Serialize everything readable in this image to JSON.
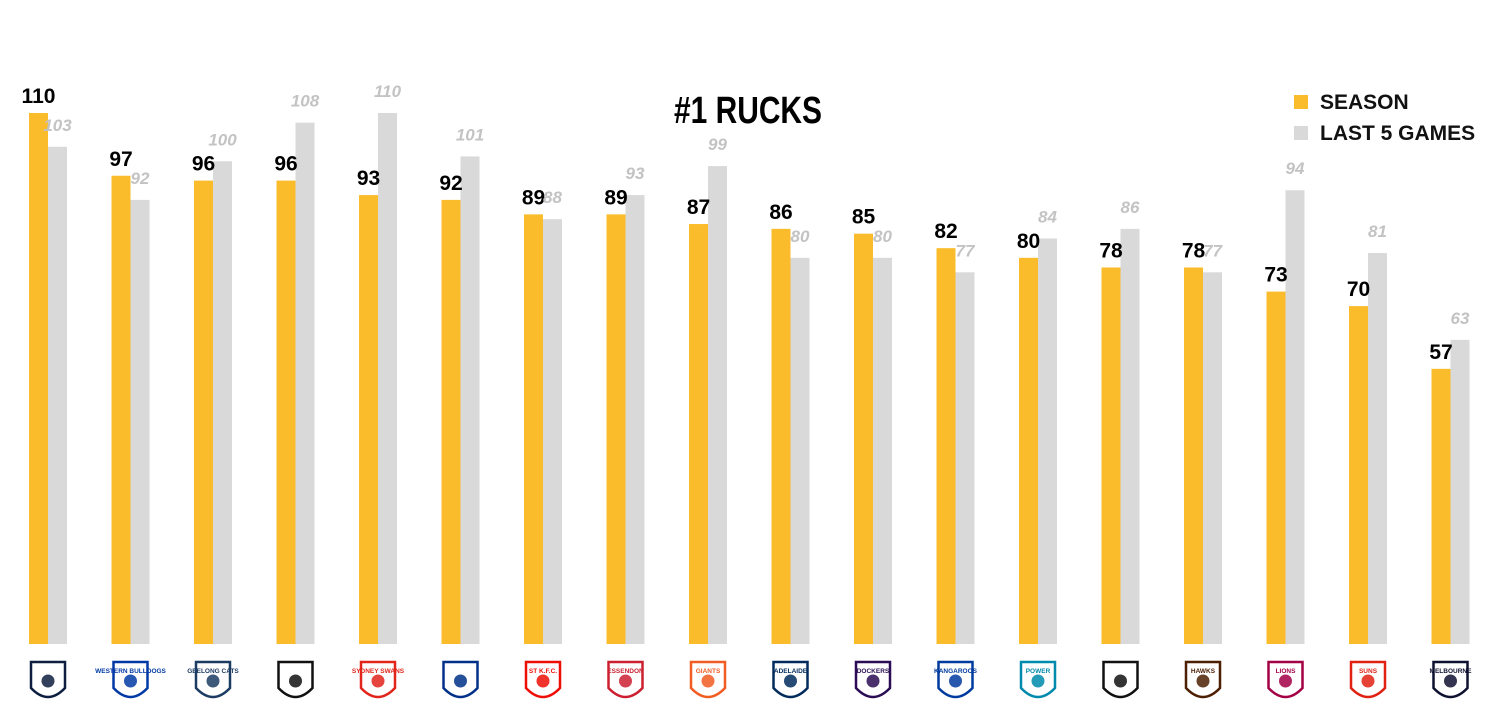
{
  "chart_data": {
    "type": "bar",
    "title": "#1 RUCKS",
    "xlabel": "",
    "ylabel": "",
    "ylim": [
      0,
      120
    ],
    "grid": false,
    "legend_position": "top-right",
    "categories": [
      "Carlton",
      "Western Bulldogs",
      "Geelong",
      "Richmond",
      "Sydney",
      "West Coast",
      "St Kilda",
      "Essendon",
      "GWS",
      "Adelaide",
      "Fremantle",
      "North Melbourne",
      "Port Adelaide",
      "Collingwood",
      "Hawthorn",
      "Brisbane",
      "Gold Coast",
      "Melbourne"
    ],
    "series": [
      {
        "name": "SEASON",
        "color": "#fbbc2c",
        "values": [
          110,
          97,
          96,
          96,
          93,
          92,
          89,
          89,
          87,
          86,
          85,
          82,
          80,
          78,
          78,
          73,
          70,
          57
        ]
      },
      {
        "name": "LAST 5 GAMES",
        "color": "#d9d9d9",
        "values": [
          103,
          92,
          100,
          108,
          110,
          101,
          88,
          93,
          99,
          80,
          80,
          77,
          84,
          86,
          77,
          94,
          81,
          63
        ]
      }
    ]
  },
  "logos": [
    {
      "icon": "carlton-logo-icon",
      "text": "",
      "color": "#0e1e40"
    },
    {
      "icon": "western-bulldogs-logo-icon",
      "text": "WESTERN BULLDOGS",
      "color": "#0039a6"
    },
    {
      "icon": "geelong-logo-icon",
      "text": "GEELONG CATS",
      "color": "#1c3c63"
    },
    {
      "icon": "richmond-logo-icon",
      "text": "",
      "color": "#111111"
    },
    {
      "icon": "sydney-logo-icon",
      "text": "SYDNEY SWANS",
      "color": "#e1251b"
    },
    {
      "icon": "west-coast-logo-icon",
      "text": "",
      "color": "#003087"
    },
    {
      "icon": "st-kilda-logo-icon",
      "text": "ST K.F.C.",
      "color": "#ed0f05"
    },
    {
      "icon": "essendon-logo-icon",
      "text": "ESSENDON",
      "color": "#cc2031"
    },
    {
      "icon": "gws-logo-icon",
      "text": "GIANTS",
      "color": "#f15c22"
    },
    {
      "icon": "adelaide-logo-icon",
      "text": "ADELAIDE",
      "color": "#002b5c"
    },
    {
      "icon": "fremantle-logo-icon",
      "text": "DOCKERS",
      "color": "#2a0d54"
    },
    {
      "icon": "north-melbourne-logo-icon",
      "text": "KANGAROOS",
      "color": "#013b9f"
    },
    {
      "icon": "port-adelaide-logo-icon",
      "text": "POWER",
      "color": "#008aab"
    },
    {
      "icon": "collingwood-logo-icon",
      "text": "",
      "color": "#111111"
    },
    {
      "icon": "hawthorn-logo-icon",
      "text": "HAWKS",
      "color": "#4d2004"
    },
    {
      "icon": "brisbane-logo-icon",
      "text": "LIONS",
      "color": "#a30046"
    },
    {
      "icon": "gold-coast-logo-icon",
      "text": "SUNS",
      "color": "#e02112"
    },
    {
      "icon": "melbourne-logo-icon",
      "text": "MELBOURNE",
      "color": "#0f1131"
    }
  ]
}
